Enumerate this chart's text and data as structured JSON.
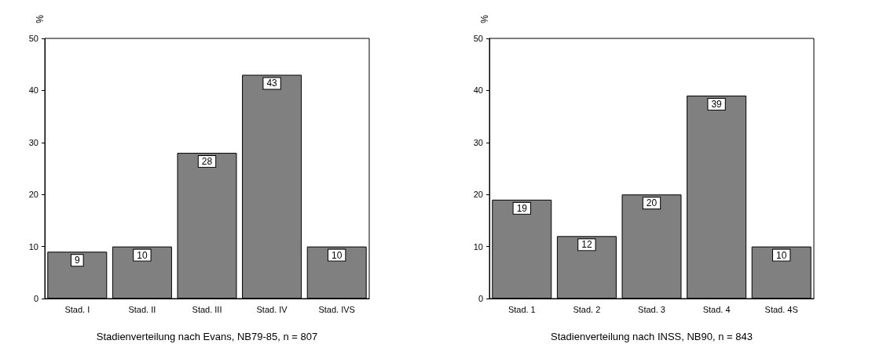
{
  "chart_data": [
    {
      "type": "bar",
      "xlabel": "Stadienverteilung nach Evans, NB79-85, n = 807",
      "ylabel": "%",
      "categories": [
        "Stad. I",
        "Stad. II",
        "Stad. III",
        "Stad. IV",
        "Stad. IVS"
      ],
      "values": [
        9,
        10,
        28,
        43,
        10
      ],
      "color": "#808080",
      "ylim": [
        0,
        50
      ],
      "yticks": [
        0,
        10,
        20,
        30,
        40,
        50
      ],
      "grid": false,
      "data_labels": true
    },
    {
      "type": "bar",
      "xlabel": "Stadienverteilung nach INSS, NB90, n = 843",
      "ylabel": "%",
      "categories": [
        "Stad. 1",
        "Stad. 2",
        "Stad. 3",
        "Stad. 4",
        "Stad. 4S"
      ],
      "values": [
        19,
        12,
        20,
        39,
        10
      ],
      "color": "#808080",
      "ylim": [
        0,
        50
      ],
      "yticks": [
        0,
        10,
        20,
        30,
        40,
        50
      ],
      "grid": false,
      "data_labels": true
    }
  ]
}
